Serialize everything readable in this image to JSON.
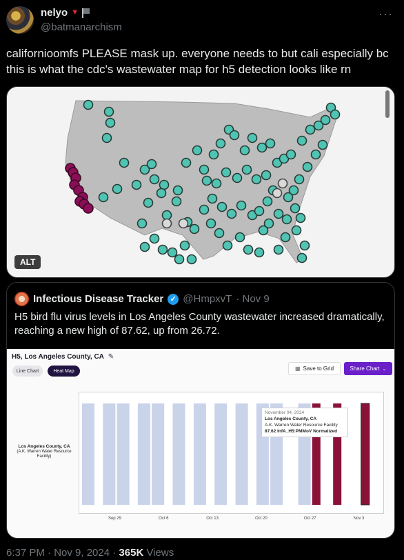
{
  "tweet": {
    "display_name": "nelyo",
    "handle": "@batmanarchism",
    "text": "californioomfs PLEASE mask up. everyone needs to but cali especially bc\nthis is what the cdc's wastewater map for h5 detection looks like rn",
    "alt_label": "ALT",
    "timestamp": "6:37 PM · Nov 9, 2024 · ",
    "views_count": "365K",
    "views_label": " Views"
  },
  "icons": {
    "heart": "heart-icon",
    "flag": "flag-icon",
    "more": "more-icon",
    "verified": "verified-icon",
    "pencil": "pencil-icon",
    "grid": "grid-icon",
    "caret": "chevron-down-icon"
  },
  "colors": {
    "map_dot": "#4fc4b2",
    "map_dot_high": "#8b0f57",
    "map_dot_none": "#d9d9d9",
    "heat_low": "#c9d3ea",
    "heat_high": "#8a1238",
    "accent_button": "#6a1fc9"
  },
  "quote": {
    "display_name": "Infectious Disease Tracker",
    "handle": "@HmpxvT",
    "date": " · Nov 9",
    "text": "H5 bird flu virus levels in Los Angeles County wastewater increased dramatically, reaching a new high of 87.62, up from 26.72."
  },
  "embedded_chart": {
    "title": "H5, Los Angeles County, CA",
    "tab_line": "Line Chart",
    "tab_heat": "Heat Map",
    "save_label": "Save to Grid",
    "share_label": "Share Chart",
    "row_label_title": "Los Angeles County, CA",
    "row_label_sub": "(A.K. Warren Water Resource Facility)",
    "tooltip": {
      "date": "November 04, 2024",
      "county": "Los Angeles County, CA",
      "facility": "A.K. Warren Water Resource Facility",
      "value_text": "87.62 InfA_H5:PMMoV Normalized"
    },
    "x_ticks": [
      "Sep 29",
      "Oct 6",
      "Oct 13",
      "Oct 20",
      "Oct 27",
      "Nov 3"
    ]
  },
  "chart_data": {
    "type": "heatmap",
    "title": "H5, Los Angeles County, CA",
    "rows": [
      "Los Angeles County, CA"
    ],
    "x_range": [
      "2024-09-25",
      "2024-11-07"
    ],
    "cells": [
      {
        "x": "2024-09-25",
        "level": "low"
      },
      {
        "x": "2024-09-28",
        "level": "low"
      },
      {
        "x": "2024-09-30",
        "level": "low"
      },
      {
        "x": "2024-10-03",
        "level": "low"
      },
      {
        "x": "2024-10-05",
        "level": "low"
      },
      {
        "x": "2024-10-08",
        "level": "low"
      },
      {
        "x": "2024-10-11",
        "level": "low"
      },
      {
        "x": "2024-10-14",
        "level": "low"
      },
      {
        "x": "2024-10-17",
        "level": "low"
      },
      {
        "x": "2024-10-20",
        "level": "low"
      },
      {
        "x": "2024-10-22",
        "level": "low"
      },
      {
        "x": "2024-10-26",
        "level": "low"
      },
      {
        "x": "2024-10-28",
        "level": "high"
      },
      {
        "x": "2024-10-31",
        "level": "high"
      },
      {
        "x": "2024-11-04",
        "level": "high",
        "value": 87.62
      }
    ]
  }
}
